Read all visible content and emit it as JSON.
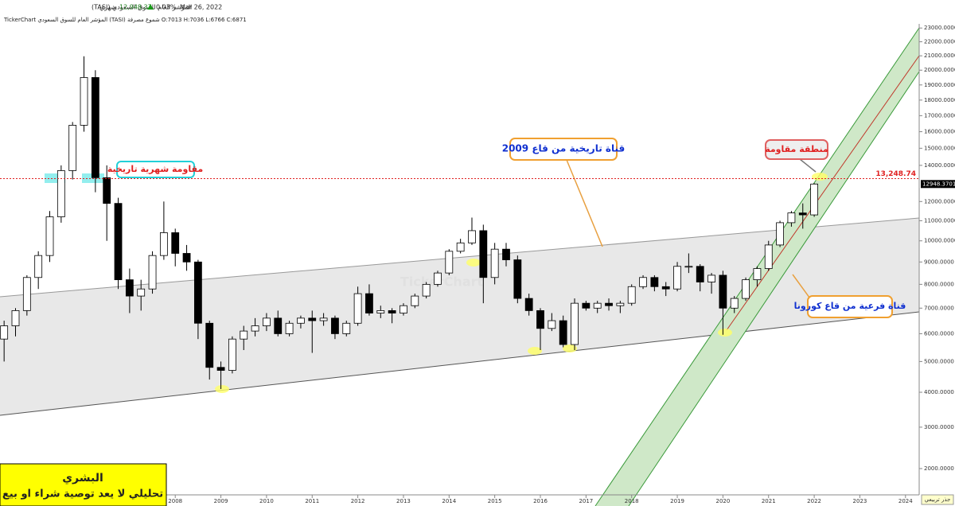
{
  "header": {
    "title": "المؤشر العام للسوق السعودي (TASI)",
    "period": "شهري",
    "price": "12,948.37",
    "change": "0.03%",
    "date": "Mar 26, 2022",
    "info": "TickerChart المؤشر العام للسوق السعودي (TASI) شموع مصرفة O:7013 H:7036 L:6766 C:6871"
  },
  "chart_data": {
    "type": "candlestick",
    "scale": "sqrt",
    "scale_label": "جذر تربيعي",
    "watermark": "TickerChart",
    "xlim": [
      2004.16,
      2024.3
    ],
    "xticks": [
      2008,
      2009,
      2010,
      2011,
      2012,
      2013,
      2014,
      2015,
      2016,
      2017,
      2018,
      2019,
      2020,
      2021,
      2022,
      2023,
      2024
    ],
    "ylim": [
      1470,
      23900
    ],
    "yticks": [
      {
        "value": 2000,
        "label": "2000.0000"
      },
      {
        "value": 3000,
        "label": "3000.0000"
      },
      {
        "value": 4000,
        "label": "4000.0000"
      },
      {
        "value": 5000,
        "label": "5000.0000"
      },
      {
        "value": 6000,
        "label": "6000.0000"
      },
      {
        "value": 7000,
        "label": "7000.0000"
      },
      {
        "value": 8000,
        "label": "8000.0000"
      },
      {
        "value": 9000,
        "label": "9000.0000"
      },
      {
        "value": 10000,
        "label": "10000.0000"
      },
      {
        "value": 11000,
        "label": "11000.0000"
      },
      {
        "value": 12000,
        "label": "12000.0000"
      },
      {
        "value": 14000,
        "label": "14000.0000"
      },
      {
        "value": 15000,
        "label": "15000.0000"
      },
      {
        "value": 16000,
        "label": "16000.0000"
      },
      {
        "value": 17000,
        "label": "17000.0000"
      },
      {
        "value": 18000,
        "label": "18000.0000"
      },
      {
        "value": 19000,
        "label": "19000.0000"
      },
      {
        "value": 20000,
        "label": "20000.0000"
      },
      {
        "value": 21000,
        "label": "21000.0000"
      },
      {
        "value": 22000,
        "label": "22000.0000"
      },
      {
        "value": 23000,
        "label": "23000.0000"
      }
    ],
    "up_color": "#ffffff",
    "down_color": "#000000",
    "x": [
      2004.25,
      2004.5,
      2004.75,
      2005.0,
      2005.25,
      2005.5,
      2005.75,
      2006.0,
      2006.25,
      2006.5,
      2006.75,
      2007.0,
      2007.25,
      2007.5,
      2007.75,
      2008.0,
      2008.25,
      2008.5,
      2008.75,
      2009.0,
      2009.25,
      2009.5,
      2009.75,
      2010.0,
      2010.25,
      2010.5,
      2010.75,
      2011.0,
      2011.25,
      2011.5,
      2011.75,
      2012.0,
      2012.25,
      2012.5,
      2012.75,
      2013.0,
      2013.25,
      2013.5,
      2013.75,
      2014.0,
      2014.25,
      2014.5,
      2014.75,
      2015.0,
      2015.25,
      2015.5,
      2015.75,
      2016.0,
      2016.25,
      2016.5,
      2016.75,
      2017.0,
      2017.25,
      2017.5,
      2017.75,
      2018.0,
      2018.25,
      2018.5,
      2018.75,
      2019.0,
      2019.25,
      2019.5,
      2019.75,
      2020.0,
      2020.25,
      2020.5,
      2020.75,
      2021.0,
      2021.25,
      2021.5,
      2021.75,
      2022.0
    ],
    "open": [
      5800,
      6300,
      6900,
      8300,
      9300,
      11200,
      13700,
      16400,
      19500,
      13300,
      11900,
      8200,
      7500,
      7800,
      9300,
      10400,
      9400,
      9000,
      6400,
      4800,
      4700,
      5800,
      6100,
      6300,
      6600,
      6000,
      6400,
      6600,
      6500,
      6600,
      6000,
      6400,
      7600,
      6800,
      6900,
      6800,
      7100,
      7500,
      8000,
      8500,
      9500,
      9900,
      10500,
      8300,
      9600,
      9100,
      7400,
      6900,
      6200,
      6500,
      5600,
      7200,
      7000,
      7200,
      7100,
      7200,
      7900,
      8300,
      7900,
      7800,
      8800,
      8800,
      8100,
      8400,
      7000,
      7400,
      8200,
      8700,
      9800,
      10900,
      11400,
      11300
    ],
    "high": [
      6500,
      7000,
      8400,
      9500,
      11500,
      14000,
      16600,
      20966,
      20000,
      14000,
      12200,
      8700,
      8200,
      9500,
      12000,
      10600,
      9800,
      9100,
      6500,
      5000,
      5900,
      6300,
      6600,
      6800,
      6900,
      6500,
      6700,
      6900,
      6800,
      6700,
      6500,
      7900,
      8000,
      7100,
      7000,
      7200,
      7600,
      8100,
      8600,
      9600,
      10100,
      11160,
      10800,
      9900,
      9900,
      9300,
      7600,
      7000,
      6800,
      6700,
      7400,
      7300,
      7300,
      7400,
      7300,
      8000,
      8400,
      8400,
      8100,
      9000,
      9400,
      8900,
      8500,
      8600,
      7500,
      8300,
      8800,
      10000,
      11000,
      11500,
      11900,
      13000
    ],
    "low": [
      5000,
      5900,
      6700,
      7800,
      9000,
      10900,
      13200,
      16000,
      12500,
      10000,
      7800,
      6800,
      6900,
      7600,
      9100,
      8800,
      8600,
      5800,
      4400,
      4100,
      4600,
      5400,
      5900,
      6100,
      5900,
      5900,
      6200,
      5300,
      6300,
      5800,
      5900,
      6300,
      6700,
      6600,
      6400,
      6700,
      7000,
      7400,
      7900,
      8400,
      9400,
      9800,
      7200,
      8000,
      8800,
      7200,
      6700,
      5400,
      6100,
      5500,
      5400,
      6900,
      6800,
      6900,
      6800,
      7100,
      7800,
      7700,
      7500,
      7700,
      8500,
      7700,
      7600,
      5960,
      6800,
      7300,
      7900,
      8600,
      9700,
      10700,
      10600,
      11200
    ],
    "close": [
      6300,
      6900,
      8300,
      9300,
      11200,
      13700,
      16400,
      19500,
      13300,
      11900,
      8200,
      7500,
      7800,
      9300,
      10400,
      9400,
      9000,
      6400,
      4800,
      4700,
      5800,
      6100,
      6300,
      6600,
      6000,
      6400,
      6600,
      6500,
      6600,
      6000,
      6400,
      7600,
      6800,
      6900,
      6800,
      7100,
      7500,
      8000,
      8500,
      9500,
      9900,
      10500,
      8300,
      9600,
      9100,
      7400,
      6900,
      6200,
      6500,
      5600,
      7200,
      7000,
      7200,
      7100,
      7200,
      7900,
      8300,
      7900,
      7800,
      8800,
      8800,
      8100,
      8400,
      7000,
      7400,
      8200,
      8700,
      9800,
      10900,
      11400,
      11300,
      12948.37
    ],
    "resistance_line": {
      "value": 13248.74,
      "label": "13,248.74",
      "color": "#e02020"
    },
    "last_price": {
      "value": 12948.3701,
      "label": "12948.3701"
    },
    "annotations": {
      "monthly_resistance": "مقاومة شهرية تاريخية",
      "channel_2009": "قناة تاريخية من قاع 2009",
      "resistance_zone": "منطقة مقاومة",
      "corona_channel": "قناة فرعية من قاع كورونا"
    }
  },
  "disclaimer": {
    "author": "البشري",
    "text": "تحليلي لا يعد توصية شراء او بيع"
  }
}
